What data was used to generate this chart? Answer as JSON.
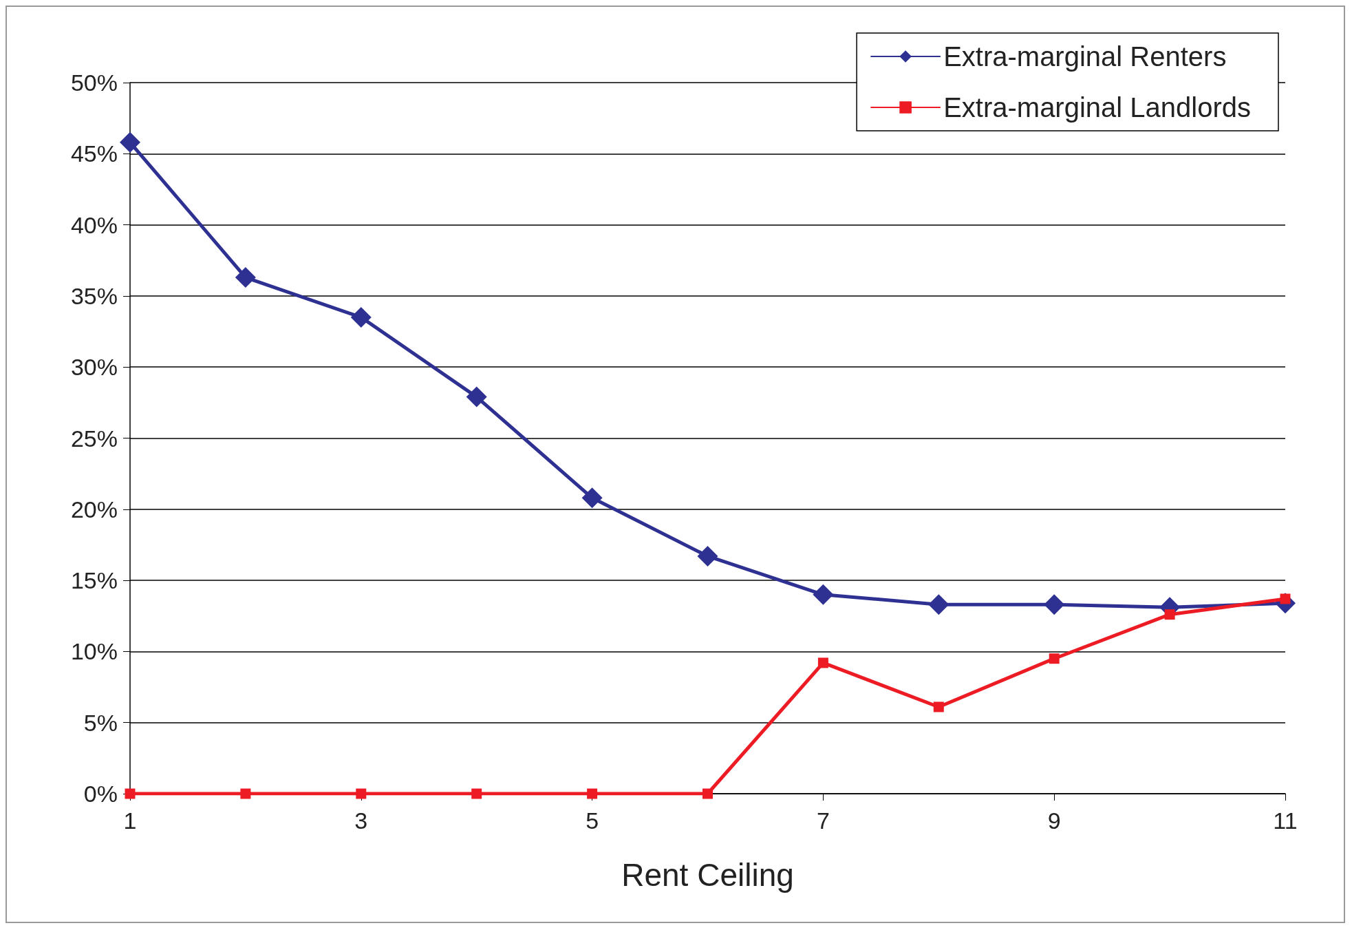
{
  "chart_data": {
    "type": "line",
    "xlabel": "Rent Ceiling",
    "x": [
      1,
      2,
      3,
      4,
      5,
      6,
      7,
      8,
      9,
      10,
      11
    ],
    "xlim": [
      1,
      11
    ],
    "xticks": [
      1,
      3,
      5,
      7,
      9,
      11
    ],
    "ylim": [
      0,
      50
    ],
    "yticks": [
      {
        "value": 0,
        "label": "0%"
      },
      {
        "value": 5,
        "label": "5%"
      },
      {
        "value": 10,
        "label": "10%"
      },
      {
        "value": 15,
        "label": "15%"
      },
      {
        "value": 20,
        "label": "20%"
      },
      {
        "value": 25,
        "label": "25%"
      },
      {
        "value": 30,
        "label": "30%"
      },
      {
        "value": 35,
        "label": "35%"
      },
      {
        "value": 40,
        "label": "40%"
      },
      {
        "value": 45,
        "label": "45%"
      },
      {
        "value": 50,
        "label": "50%"
      }
    ],
    "grid": "y",
    "legend": "top right",
    "line_style": "solid",
    "series": [
      {
        "name": "Extra-marginal Renters",
        "color": "#2e3192",
        "marker": "diamond",
        "values": [
          45.8,
          36.3,
          33.5,
          27.9,
          20.8,
          16.7,
          14.0,
          13.3,
          13.3,
          13.1,
          13.4
        ]
      },
      {
        "name": "Extra-marginal Landlords",
        "color": "#ed1c24",
        "marker": "square",
        "values": [
          0,
          0,
          0,
          0,
          0,
          0,
          9.2,
          6.1,
          9.5,
          12.6,
          13.7
        ]
      }
    ]
  }
}
